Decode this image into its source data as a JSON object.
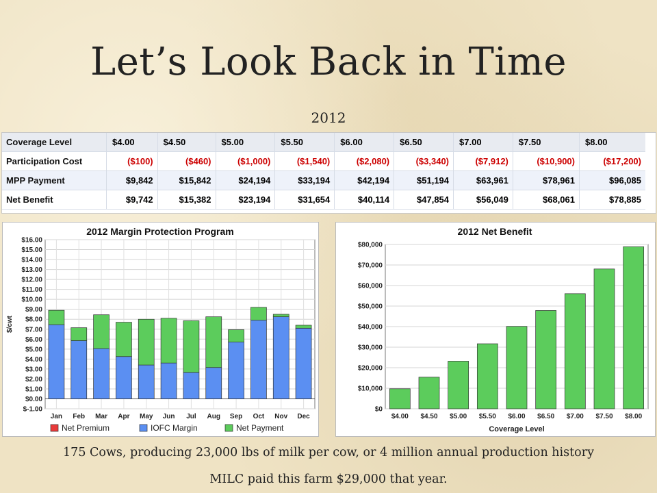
{
  "slide": {
    "title": "Let’s Look Back in Time",
    "year": "2012",
    "footer_line1": "175 Cows, producing 23,000 lbs of milk per cow, or 4 million annual production history",
    "footer_line2": "MILC paid this farm $29,000 that year."
  },
  "table": {
    "rows": [
      {
        "label": "Coverage Level",
        "values": [
          "$4.00",
          "$4.50",
          "$5.00",
          "$5.50",
          "$6.00",
          "$6.50",
          "$7.00",
          "$7.50",
          "$8.00"
        ]
      },
      {
        "label": "Participation Cost",
        "values": [
          "($100)",
          "($460)",
          "($1,000)",
          "($1,540)",
          "($2,080)",
          "($3,340)",
          "($7,912)",
          "($10,900)",
          "($17,200)"
        ]
      },
      {
        "label": "MPP Payment",
        "values": [
          "$9,842",
          "$15,842",
          "$24,194",
          "$33,194",
          "$42,194",
          "$51,194",
          "$63,961",
          "$78,961",
          "$96,085"
        ]
      },
      {
        "label": "Net Benefit",
        "values": [
          "$9,742",
          "$15,382",
          "$23,194",
          "$31,654",
          "$40,114",
          "$47,854",
          "$56,049",
          "$68,061",
          "$78,885"
        ]
      }
    ]
  },
  "chart_data": [
    {
      "type": "bar",
      "stacked": true,
      "title": "2012 Margin Protection Program",
      "xlabel": "",
      "ylabel": "$/cwt",
      "ylim": [
        -1,
        16
      ],
      "yticks": [
        "$16.00",
        "$15.00",
        "$14.00",
        "$13.00",
        "$12.00",
        "$11.00",
        "$10.00",
        "$9.00",
        "$8.00",
        "$7.00",
        "$6.00",
        "$5.00",
        "$4.00",
        "$3.00",
        "$2.00",
        "$1.00",
        "$0.00",
        "$-1.00"
      ],
      "categories": [
        "Jan",
        "Feb",
        "Mar",
        "Apr",
        "May",
        "Jun",
        "Jul",
        "Aug",
        "Sep",
        "Oct",
        "Nov",
        "Dec"
      ],
      "legend_position": "bottom",
      "grid": true,
      "series": [
        {
          "name": "Net Premium",
          "color": "#e83a3a",
          "values": [
            0,
            0,
            0,
            0,
            0,
            0,
            0,
            0,
            0,
            0,
            0,
            0
          ]
        },
        {
          "name": "IOFC Margin",
          "color": "#5b8ff2",
          "values": [
            7.45,
            5.85,
            5.05,
            4.25,
            3.4,
            3.6,
            2.65,
            3.15,
            5.7,
            7.9,
            8.25,
            7.1
          ]
        },
        {
          "name": "Net Payment",
          "color": "#5ccc5c",
          "values": [
            1.45,
            1.3,
            3.4,
            3.45,
            4.6,
            4.5,
            5.2,
            5.1,
            1.25,
            1.3,
            0.25,
            0.3
          ]
        }
      ]
    },
    {
      "type": "bar",
      "title": "2012 Net Benefit",
      "xlabel": "Coverage Level",
      "ylabel": "",
      "ylim": [
        0,
        80000
      ],
      "yticks": [
        "$80,000",
        "$70,000",
        "$60,000",
        "$50,000",
        "$40,000",
        "$30,000",
        "$20,000",
        "$10,000",
        "$0"
      ],
      "categories": [
        "$4.00",
        "$4.50",
        "$5.00",
        "$5.50",
        "$6.00",
        "$6.50",
        "$7.00",
        "$7.50",
        "$8.00"
      ],
      "grid": true,
      "series": [
        {
          "color": "#5ccc5c",
          "values": [
            9742,
            15382,
            23194,
            31654,
            40114,
            47854,
            56049,
            68061,
            78885
          ]
        }
      ]
    }
  ]
}
